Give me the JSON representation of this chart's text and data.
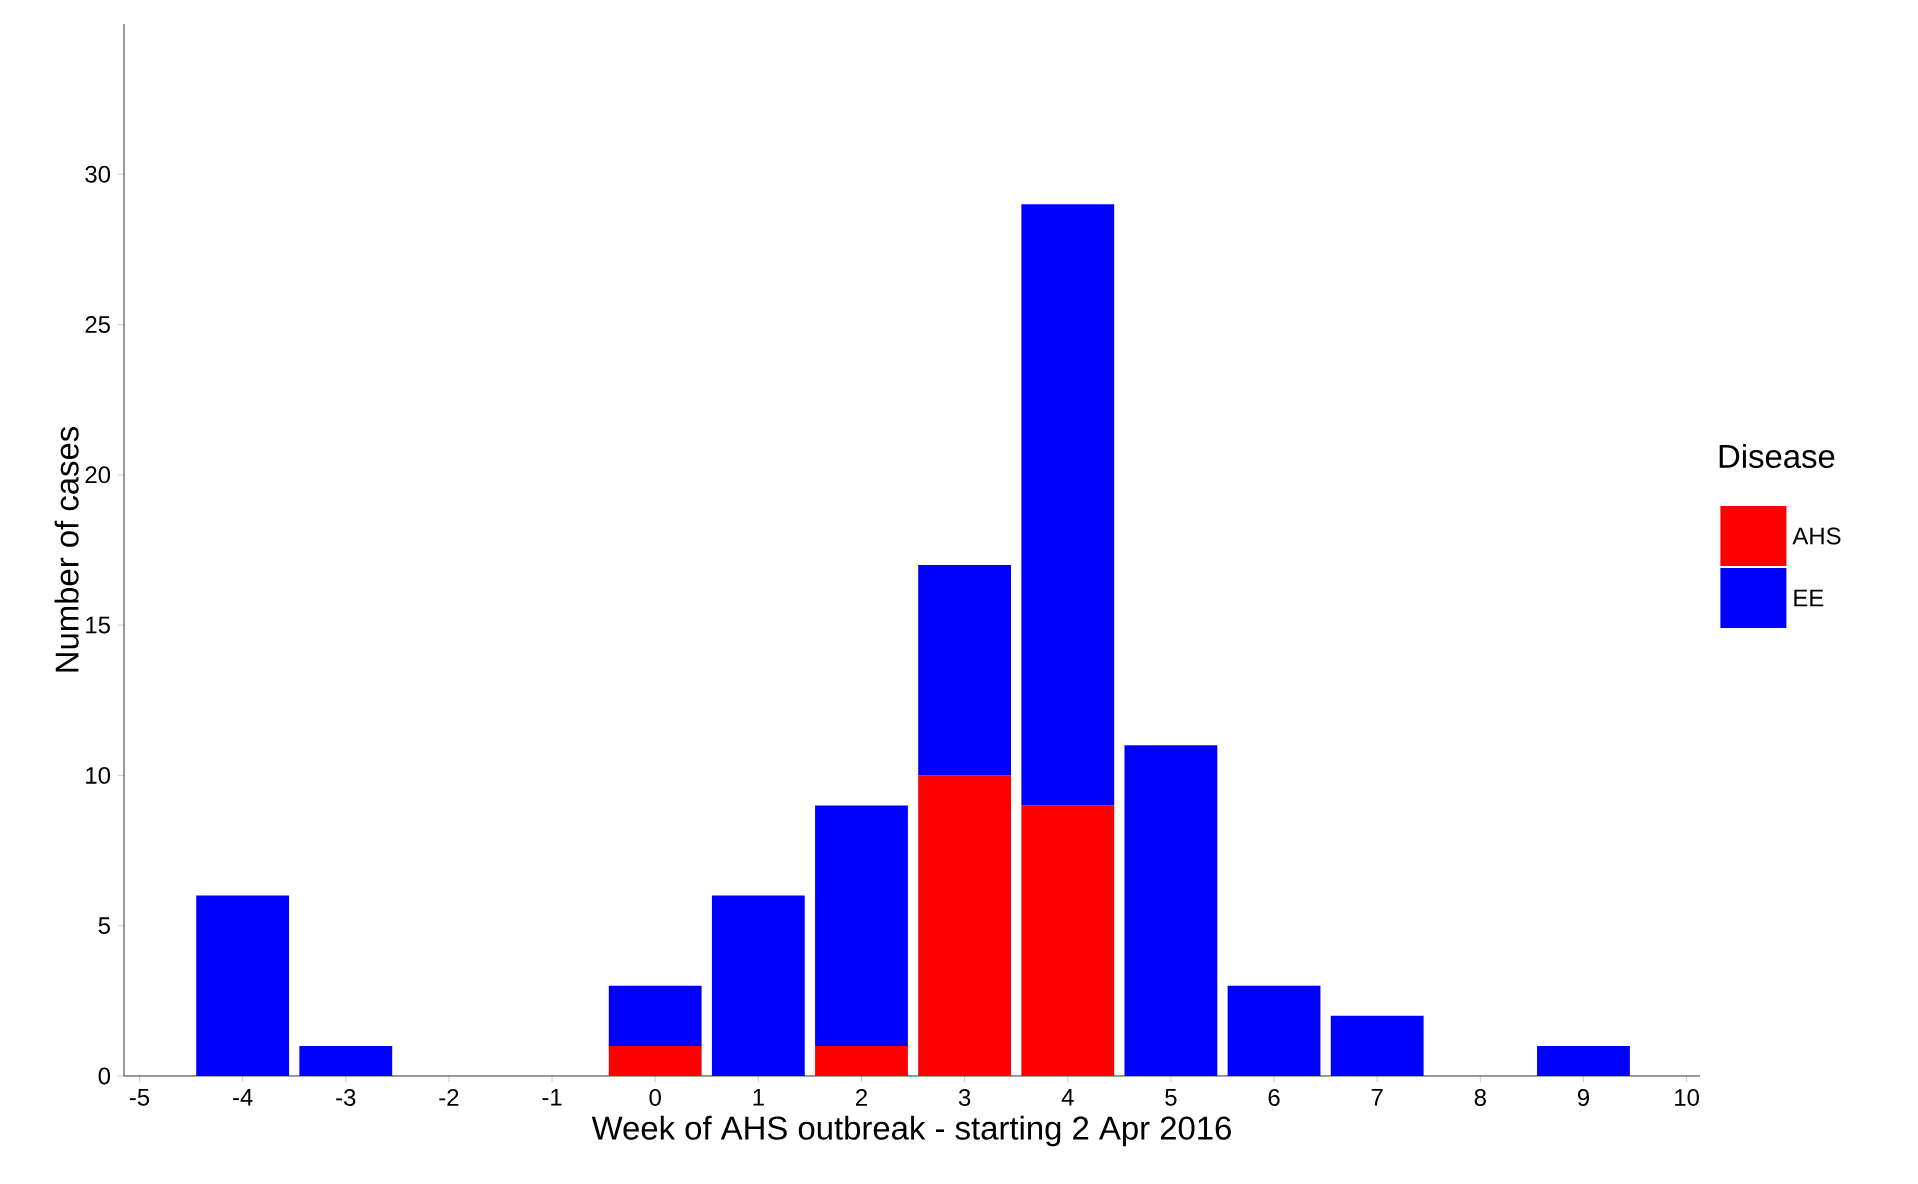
{
  "chart_data": {
    "type": "bar",
    "stacked": true,
    "xlabel": "Week of AHS outbreak - starting 2 Apr 2016",
    "ylabel": "Number of cases",
    "legend_title": "Disease",
    "x": [
      -4,
      -3,
      0,
      1,
      2,
      3,
      4,
      5,
      6,
      7,
      9
    ],
    "series": [
      {
        "name": "AHS",
        "color": "#ff0000",
        "values": [
          null,
          null,
          1,
          null,
          1,
          10,
          9,
          null,
          null,
          null,
          null
        ]
      },
      {
        "name": "EE",
        "color": "#0000ff",
        "values": [
          6,
          1,
          2,
          6,
          8,
          7,
          20,
          11,
          3,
          2,
          1
        ]
      }
    ],
    "xlim": [
      -5.15,
      10.13
    ],
    "xticks": [
      -5,
      -4,
      -3,
      -2,
      -1,
      0,
      1,
      2,
      3,
      4,
      5,
      6,
      7,
      8,
      9,
      10
    ],
    "ylim": [
      0,
      35
    ],
    "yticks": [
      0,
      5,
      10,
      15,
      20,
      25,
      30
    ],
    "grid": false,
    "legend": "right"
  }
}
